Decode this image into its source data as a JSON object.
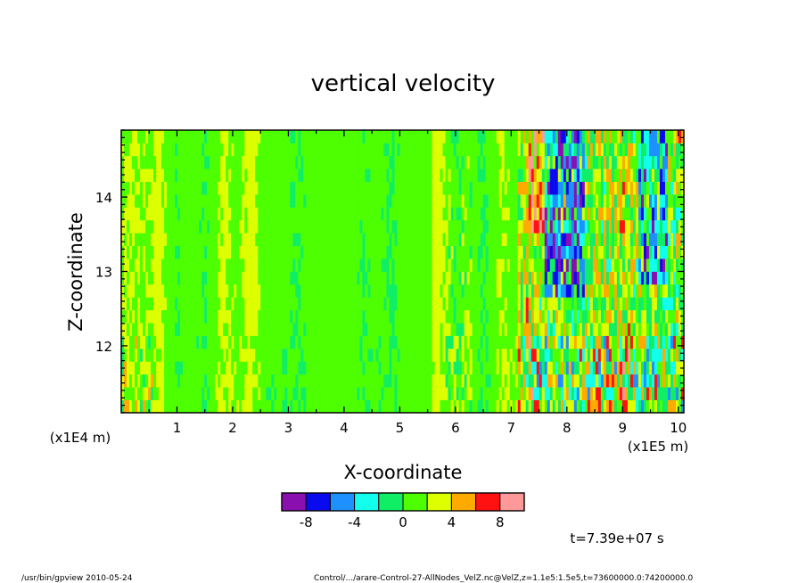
{
  "chart_data": {
    "type": "heatmap",
    "title": "vertical velocity",
    "xlabel": "X-coordinate",
    "ylabel": "Z-coordinate",
    "x_unit_note": "(x1E5 m)",
    "y_unit_note": "(x1E4 m)",
    "xlim": [
      0.0,
      10.1
    ],
    "ylim": [
      11.1,
      14.9
    ],
    "x_ticks": [
      1,
      2,
      3,
      4,
      5,
      6,
      7,
      8,
      9,
      10
    ],
    "y_ticks": [
      12,
      13,
      14
    ],
    "colorbar": {
      "levels": [
        -10,
        -8,
        -6,
        -4,
        -2,
        0,
        2,
        4,
        6,
        8,
        10
      ],
      "tick_labels": [
        "-8",
        "-4",
        "0",
        "4",
        "8"
      ],
      "tick_values": [
        -8,
        -4,
        0,
        4,
        8
      ],
      "colors": [
        "#8a0fb0",
        "#0a0aee",
        "#1e90ff",
        "#12ffee",
        "#10ee66",
        "#4dff00",
        "#ddff00",
        "#ffaa00",
        "#ff1111",
        "#ff9999"
      ]
    },
    "time_label": "t=7.39e+07 s"
  },
  "footer": {
    "left": "/usr/bin/gpview   2010-05-24",
    "right": "Control/.../arare-Control-27-AllNodes_VelZ.nc@VelZ,z=1.1e5:1.5e5,t=73600000.0:74200000.0"
  }
}
